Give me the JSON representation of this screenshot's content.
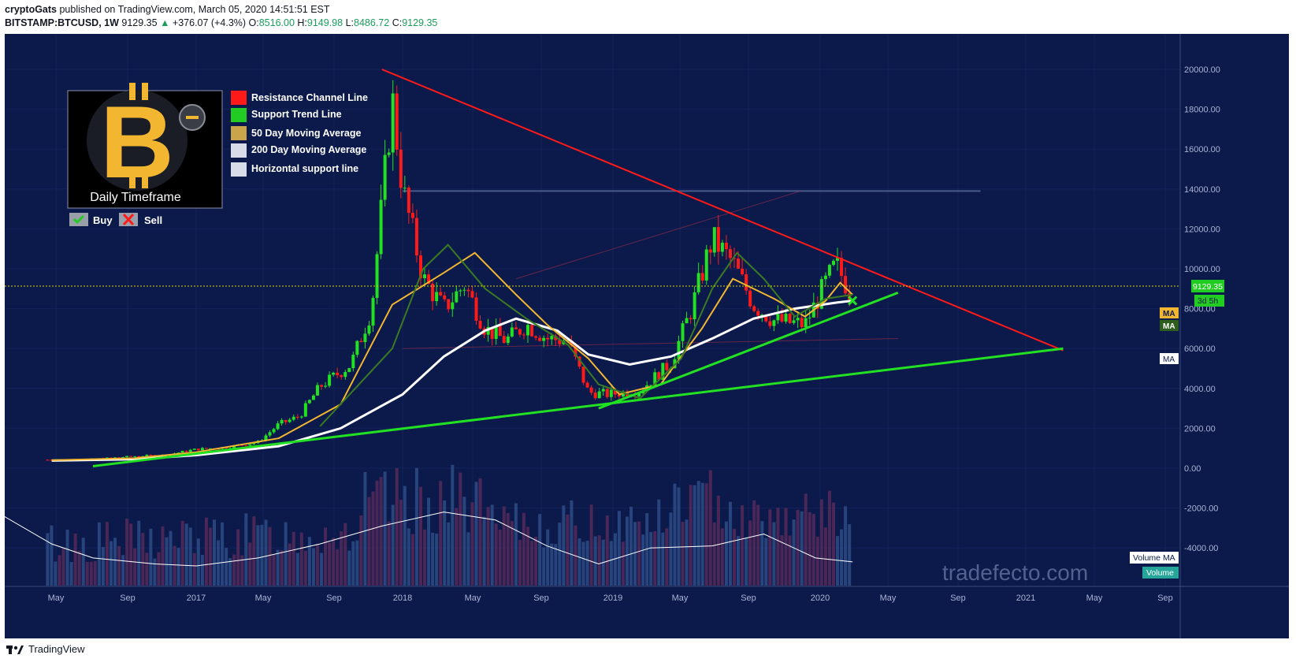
{
  "header": {
    "author": "cryptoGats",
    "published": "published on TradingView.com, March 05, 2020 14:51:51 EST",
    "symbol": "BITSTAMP:BTCUSD, 1W",
    "price": "9129.35",
    "change_arrow": "▲",
    "change": "+376.07 (+4.3%)",
    "o_label": "O:",
    "o_value": "8516.00",
    "h_label": "H:",
    "h_value": "9149.98",
    "l_label": "L:",
    "l_value": "8486.72",
    "c_label": "C:",
    "c_value": "9129.35"
  },
  "footer": {
    "brand": "TradingView"
  },
  "watermark": "tradefecto.com",
  "logo": {
    "caption": "Daily Timeframe",
    "minus_icon": "minus-icon"
  },
  "legend": [
    {
      "label": "Resistance Channel Line",
      "color": "#ff1a1a"
    },
    {
      "label": "Support Trend Line",
      "color": "#22cc22"
    },
    {
      "label": "50 Day Moving Average",
      "color": "#c9a44a"
    },
    {
      "label": "200 Day Moving Average",
      "color": "#d8dce8"
    },
    {
      "label": "Horizontal support line",
      "color": "#d8dce8"
    }
  ],
  "signals": [
    {
      "label": "Buy",
      "icon": "checkmark-icon"
    },
    {
      "label": "Sell",
      "icon": "cross-icon"
    }
  ],
  "badges": {
    "price": "9129.35",
    "countdown": "3d 5h",
    "ma1": "MA",
    "ma2": "MA",
    "ma3": "MA",
    "volume_ma": "Volume MA",
    "volume": "Volume"
  },
  "chart_data": {
    "type": "candlestick",
    "symbol": "BITSTAMP:BTCUSD",
    "interval": "1W",
    "y_ticks": [
      "20000.00",
      "18000.00",
      "16000.00",
      "14000.00",
      "12000.00",
      "10000.00",
      "8000.00",
      "6000.00",
      "4000.00",
      "2000.00",
      "0.00",
      "-2000.00",
      "-4000.00"
    ],
    "ylim": [
      -5800,
      21200
    ],
    "x_ticks": [
      "May",
      "Sep",
      "2017",
      "May",
      "Sep",
      "2018",
      "May",
      "Sep",
      "2019",
      "May",
      "Sep",
      "2020",
      "May",
      "Sep",
      "2021",
      "May",
      "Sep"
    ],
    "close_series": [
      [
        2016.3,
        420
      ],
      [
        2016.5,
        450
      ],
      [
        2016.7,
        600
      ],
      [
        2016.85,
        660
      ],
      [
        2017.0,
        950
      ],
      [
        2017.15,
        1050
      ],
      [
        2017.3,
        1300
      ],
      [
        2017.4,
        2200
      ],
      [
        2017.5,
        2600
      ],
      [
        2017.6,
        4100
      ],
      [
        2017.75,
        5200
      ],
      [
        2017.85,
        8000
      ],
      [
        2017.95,
        18500
      ],
      [
        2018.0,
        14000
      ],
      [
        2018.1,
        9500
      ],
      [
        2018.2,
        8000
      ],
      [
        2018.3,
        9200
      ],
      [
        2018.4,
        7000
      ],
      [
        2018.5,
        6400
      ],
      [
        2018.6,
        7200
      ],
      [
        2018.7,
        6500
      ],
      [
        2018.8,
        6400
      ],
      [
        2018.9,
        3800
      ],
      [
        2019.0,
        3700
      ],
      [
        2019.15,
        3900
      ],
      [
        2019.3,
        5300
      ],
      [
        2019.4,
        8000
      ],
      [
        2019.5,
        11500
      ],
      [
        2019.6,
        10300
      ],
      [
        2019.7,
        8200
      ],
      [
        2019.8,
        7400
      ],
      [
        2019.95,
        7200
      ],
      [
        2020.05,
        9300
      ],
      [
        2020.1,
        10200
      ],
      [
        2020.17,
        8800
      ],
      [
        2020.18,
        9129.35
      ]
    ],
    "ma_50": [
      [
        2016.3,
        400
      ],
      [
        2016.7,
        500
      ],
      [
        2017.0,
        800
      ],
      [
        2017.4,
        1500
      ],
      [
        2017.7,
        3200
      ],
      [
        2017.95,
        8200
      ],
      [
        2018.2,
        9800
      ],
      [
        2018.35,
        10800
      ],
      [
        2018.55,
        8700
      ],
      [
        2018.7,
        7200
      ],
      [
        2018.9,
        5500
      ],
      [
        2019.05,
        3700
      ],
      [
        2019.25,
        4200
      ],
      [
        2019.45,
        7000
      ],
      [
        2019.6,
        9500
      ],
      [
        2019.8,
        8500
      ],
      [
        2019.95,
        7600
      ],
      [
        2020.05,
        8400
      ],
      [
        2020.12,
        9300
      ],
      [
        2020.18,
        8700
      ]
    ],
    "ma_200": [
      [
        2016.3,
        380
      ],
      [
        2016.7,
        450
      ],
      [
        2017.0,
        650
      ],
      [
        2017.4,
        1100
      ],
      [
        2017.7,
        2000
      ],
      [
        2018.0,
        3700
      ],
      [
        2018.2,
        5600
      ],
      [
        2018.4,
        6900
      ],
      [
        2018.55,
        7500
      ],
      [
        2018.75,
        6900
      ],
      [
        2018.9,
        5700
      ],
      [
        2019.1,
        5200
      ],
      [
        2019.3,
        5600
      ],
      [
        2019.5,
        6500
      ],
      [
        2019.7,
        7500
      ],
      [
        2019.9,
        8000
      ],
      [
        2020.1,
        8300
      ],
      [
        2020.18,
        8400
      ]
    ],
    "trendlines": [
      {
        "name": "Resistance Channel Line",
        "points": [
          [
            2017.9,
            20000
          ],
          [
            2021.2,
            5900
          ]
        ]
      },
      {
        "name": "Support Trend Line",
        "points": [
          [
            2016.5,
            100
          ],
          [
            2021.2,
            6000
          ]
        ]
      },
      {
        "name": "Support Trend Line",
        "points": [
          [
            2018.95,
            3000
          ],
          [
            2020.4,
            8800
          ]
        ]
      },
      {
        "name": "Horizontal support line",
        "points": [
          [
            2018.0,
            13800
          ],
          [
            2020.8,
            13800
          ]
        ]
      }
    ],
    "horizontal_price_line": 9129.35
  }
}
